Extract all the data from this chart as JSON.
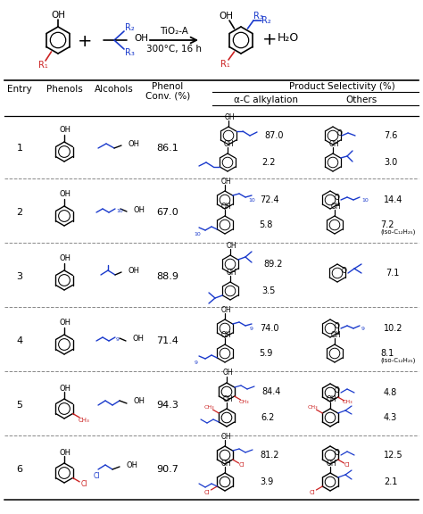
{
  "bg_color": "#ffffff",
  "text_color": "#000000",
  "blue_color": "#1a3acc",
  "red_color": "#cc2222",
  "gray_color": "#888888",
  "rows": [
    {
      "entry": "1",
      "conv": "86.1",
      "alpha": [
        "87.0",
        "2.2"
      ],
      "other": [
        "7.6",
        "3.0"
      ]
    },
    {
      "entry": "2",
      "conv": "67.0",
      "alpha": [
        "72.4",
        "5.8"
      ],
      "other": [
        "14.4",
        "7.2"
      ],
      "other_note": [
        "",
        "(iso-C₁₂H₂₅)"
      ]
    },
    {
      "entry": "3",
      "conv": "88.9",
      "alpha": [
        "89.2",
        "3.5"
      ],
      "other": [
        "7.1"
      ]
    },
    {
      "entry": "4",
      "conv": "71.4",
      "alpha": [
        "74.0",
        "5.9"
      ],
      "other": [
        "10.2",
        "8.1"
      ],
      "other_note": [
        "",
        "(iso-C₁₂H₂₅)"
      ]
    },
    {
      "entry": "5",
      "conv": "94.3",
      "alpha": [
        "84.4",
        "6.2"
      ],
      "other": [
        "4.8",
        "4.3"
      ]
    },
    {
      "entry": "6",
      "conv": "90.7",
      "alpha": [
        "81.2",
        "3.9"
      ],
      "other": [
        "12.5",
        "2.1"
      ]
    }
  ]
}
